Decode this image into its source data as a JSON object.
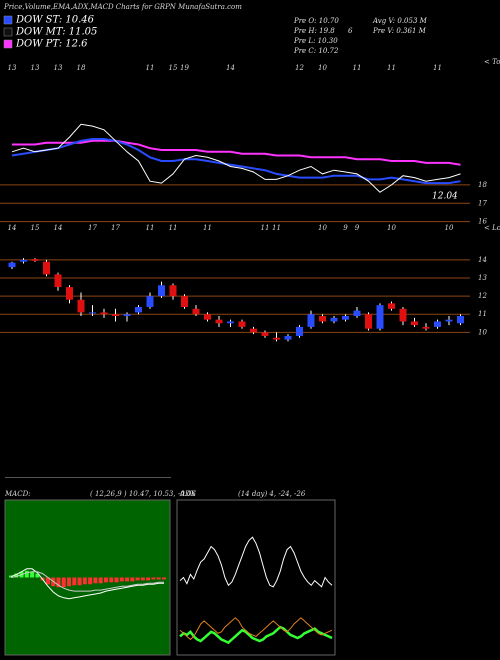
{
  "header": {
    "title": "Price,Volume,EMA,ADX,MACD Charts for GRPN MunafaSutra.com",
    "legend": [
      {
        "label": "DOW ST: 10.46",
        "color": "#2a4cff"
      },
      {
        "label": "DOW MT: 11.05",
        "color": "#101010"
      },
      {
        "label": "DOW PT: 12.6",
        "color": "#ff33ff"
      }
    ],
    "info": [
      "Pre O: 10.70",
      "Avg V: 0.053 M",
      "Pre H: 19.8",
      "6",
      "Pre V: 0.361 M",
      "Pre L: 10.30",
      "Pre C: 10.72"
    ]
  },
  "chart_data": [
    {
      "type": "line",
      "corner_label": "< Tops",
      "annotation": "12.04",
      "categories": [
        "13",
        null,
        "13",
        null,
        "13",
        null,
        "18",
        null,
        null,
        null,
        null,
        null,
        "11",
        null,
        "15",
        "19",
        null,
        null,
        null,
        "14",
        null,
        null,
        null,
        null,
        null,
        "12",
        null,
        "10",
        null,
        null,
        "11",
        null,
        null,
        "11",
        null,
        null,
        null,
        "11",
        null,
        null
      ],
      "series": [
        {
          "name": "EMA long",
          "color": "#ff33ff",
          "values": [
            20.2,
            20.2,
            20.2,
            20.3,
            20.3,
            20.3,
            20.3,
            20.4,
            20.4,
            20.4,
            20.3,
            20.2,
            20.0,
            19.9,
            19.9,
            19.9,
            19.9,
            19.8,
            19.8,
            19.8,
            19.7,
            19.7,
            19.7,
            19.6,
            19.6,
            19.6,
            19.5,
            19.5,
            19.5,
            19.5,
            19.4,
            19.4,
            19.4,
            19.3,
            19.3,
            19.3,
            19.2,
            19.2,
            19.2,
            19.1
          ]
        },
        {
          "name": "EMA short",
          "color": "#2a4cff",
          "values": [
            19.6,
            19.7,
            19.8,
            19.9,
            20.0,
            20.2,
            20.4,
            20.5,
            20.5,
            20.4,
            20.2,
            19.9,
            19.5,
            19.3,
            19.3,
            19.4,
            19.4,
            19.3,
            19.2,
            19.1,
            19.0,
            18.9,
            18.8,
            18.6,
            18.5,
            18.4,
            18.4,
            18.4,
            18.5,
            18.5,
            18.5,
            18.3,
            18.3,
            18.4,
            18.3,
            18.2,
            18.1,
            18.1,
            18.1,
            18.2
          ]
        },
        {
          "name": "Price",
          "color": "#ffffff",
          "values": [
            19.8,
            20.0,
            19.8,
            19.9,
            20.0,
            20.6,
            21.3,
            21.2,
            21.0,
            20.4,
            19.8,
            19.3,
            18.2,
            18.1,
            18.6,
            19.4,
            19.6,
            19.5,
            19.3,
            19.0,
            18.9,
            18.7,
            18.3,
            18.3,
            18.5,
            18.8,
            19.0,
            18.6,
            18.8,
            18.7,
            18.6,
            18.2,
            17.6,
            18.0,
            18.5,
            18.4,
            18.2,
            18.3,
            18.4,
            18.6
          ]
        }
      ],
      "ylim": [
        15,
        24.8
      ],
      "yticks": [
        16,
        17,
        18
      ],
      "grid": true,
      "grid_color": "#8b4513"
    },
    {
      "type": "candlestick",
      "corner_label": "< Lower",
      "categories": [
        "14",
        null,
        "15",
        null,
        "14",
        null,
        null,
        "17",
        null,
        "17",
        null,
        null,
        "11",
        null,
        "11",
        null,
        null,
        "11",
        null,
        null,
        null,
        null,
        "11",
        "11",
        null,
        null,
        null,
        "10",
        null,
        "9",
        "9",
        null,
        null,
        "10",
        null,
        null,
        null,
        null,
        "10",
        null
      ],
      "open": [
        13.6,
        13.9,
        14.05,
        13.9,
        13.2,
        12.5,
        11.8,
        11.1,
        11.1,
        11.0,
        10.9,
        11.1,
        11.4,
        12.0,
        12.6,
        12.0,
        11.3,
        11.0,
        10.7,
        10.5,
        10.6,
        10.2,
        10.0,
        9.7,
        9.6,
        9.8,
        10.3,
        10.9,
        10.6,
        10.7,
        10.9,
        11.0,
        10.2,
        11.6,
        11.3,
        10.6,
        10.3,
        10.3,
        10.6,
        10.5
      ],
      "high": [
        13.9,
        14.1,
        14.1,
        14.0,
        13.3,
        12.6,
        12.2,
        11.5,
        11.3,
        11.3,
        11.1,
        11.5,
        12.2,
        12.8,
        12.7,
        12.1,
        11.5,
        11.1,
        10.9,
        10.7,
        10.7,
        10.3,
        10.1,
        10.0,
        9.9,
        10.4,
        11.2,
        11.0,
        10.9,
        11.0,
        11.4,
        11.1,
        11.6,
        11.7,
        11.4,
        10.8,
        10.5,
        10.7,
        10.9,
        11.0
      ],
      "low": [
        13.5,
        13.8,
        13.9,
        13.1,
        12.3,
        11.6,
        10.9,
        10.9,
        10.8,
        10.6,
        10.6,
        11.0,
        11.3,
        11.9,
        11.8,
        11.3,
        10.9,
        10.6,
        10.3,
        10.3,
        10.2,
        9.9,
        9.7,
        9.5,
        9.5,
        9.7,
        10.2,
        10.5,
        10.5,
        10.6,
        10.8,
        10.1,
        10.1,
        11.2,
        10.4,
        10.3,
        10.1,
        10.2,
        10.4,
        10.4
      ],
      "close": [
        13.85,
        14.0,
        13.95,
        13.2,
        12.5,
        11.8,
        11.1,
        11.1,
        11.0,
        10.9,
        11.0,
        11.4,
        12.0,
        12.6,
        12.0,
        11.4,
        11.0,
        10.7,
        10.5,
        10.6,
        10.3,
        10.0,
        9.8,
        9.6,
        9.8,
        10.3,
        11.0,
        10.6,
        10.8,
        10.9,
        11.2,
        10.2,
        11.5,
        11.3,
        10.6,
        10.4,
        10.2,
        10.6,
        10.7,
        10.9
      ],
      "up_color": "#2a4cff",
      "down_color": "#e01010",
      "ylim": [
        9.3,
        15.1
      ],
      "yticks": [
        10,
        11,
        12,
        13,
        14
      ],
      "grid": true,
      "grid_color": "#8b4513"
    },
    {
      "type": "bar",
      "title": "MACD:",
      "subtitle": "( 12,26,9 ) 10.47, 10.53, -0.06",
      "values": [
        0.2,
        0.4,
        0.6,
        0.7,
        0.6,
        0.4,
        -0.3,
        -0.7,
        -0.9,
        -1.0,
        -1.0,
        -0.9,
        -0.8,
        -0.8,
        -0.7,
        -0.7,
        -0.6,
        -0.6,
        -0.5,
        -0.5,
        -0.5,
        -0.4,
        -0.4,
        -0.4,
        -0.3,
        -0.3,
        -0.3,
        -0.2,
        -0.2,
        -0.2
      ],
      "pos_color": "#33ff33",
      "neg_color": "#ff3030",
      "series": [
        {
          "name": "MACD",
          "color": "#ffffff",
          "values": [
            0.1,
            0.3,
            0.6,
            0.9,
            0.9,
            0.5,
            -0.2,
            -0.9,
            -1.5,
            -1.9,
            -2.1,
            -2.2,
            -2.1,
            -2.0,
            -1.9,
            -1.8,
            -1.7,
            -1.6,
            -1.4,
            -1.3,
            -1.2,
            -1.1,
            -1.0,
            -0.9,
            -0.8,
            -0.8,
            -0.7,
            -0.7,
            -0.6,
            -0.6
          ]
        },
        {
          "name": "Signal",
          "color": "#cccccc",
          "values": [
            0.0,
            0.1,
            0.3,
            0.5,
            0.6,
            0.6,
            0.4,
            0.0,
            -0.4,
            -0.8,
            -1.1,
            -1.3,
            -1.4,
            -1.4,
            -1.4,
            -1.4,
            -1.3,
            -1.3,
            -1.2,
            -1.1,
            -1.0,
            -0.9,
            -0.9,
            -0.8,
            -0.7,
            -0.7,
            -0.6,
            -0.6,
            -0.5,
            -0.5
          ]
        }
      ],
      "ylim": [
        -8,
        8
      ],
      "background": "#006400"
    },
    {
      "type": "line",
      "title": "ADX",
      "subtitle": "(14 day) 4, -24, -26",
      "series": [
        {
          "name": "ADX",
          "color": "#ffffff",
          "values": [
            48,
            50,
            46,
            52,
            49,
            55,
            60,
            62,
            66,
            70,
            68,
            64,
            58,
            50,
            45,
            47,
            52,
            58,
            64,
            70,
            74,
            76,
            72,
            66,
            58,
            50,
            45,
            44,
            48,
            54,
            62,
            68,
            70,
            66,
            60,
            54,
            50,
            47,
            45,
            48,
            46,
            44,
            50,
            47,
            45
          ]
        },
        {
          "name": "+DI",
          "color": "#33ff33",
          "values": [
            12,
            14,
            13,
            15,
            12,
            10,
            9,
            11,
            13,
            15,
            14,
            12,
            10,
            9,
            8,
            10,
            12,
            14,
            16,
            15,
            13,
            11,
            10,
            9,
            10,
            12,
            13,
            14,
            16,
            18,
            17,
            15,
            13,
            12,
            11,
            12,
            14,
            15,
            16,
            17,
            15,
            14,
            13,
            12,
            11
          ]
        },
        {
          "name": "-DI",
          "color": "#e08020",
          "values": [
            16,
            14,
            12,
            10,
            12,
            16,
            20,
            22,
            20,
            18,
            16,
            14,
            15,
            18,
            20,
            22,
            24,
            22,
            18,
            16,
            14,
            13,
            12,
            14,
            16,
            18,
            20,
            22,
            20,
            18,
            16,
            15,
            17,
            20,
            22,
            24,
            22,
            20,
            18,
            16,
            14,
            13,
            14,
            15,
            16
          ]
        }
      ],
      "ylim": [
        0,
        100
      ]
    }
  ]
}
